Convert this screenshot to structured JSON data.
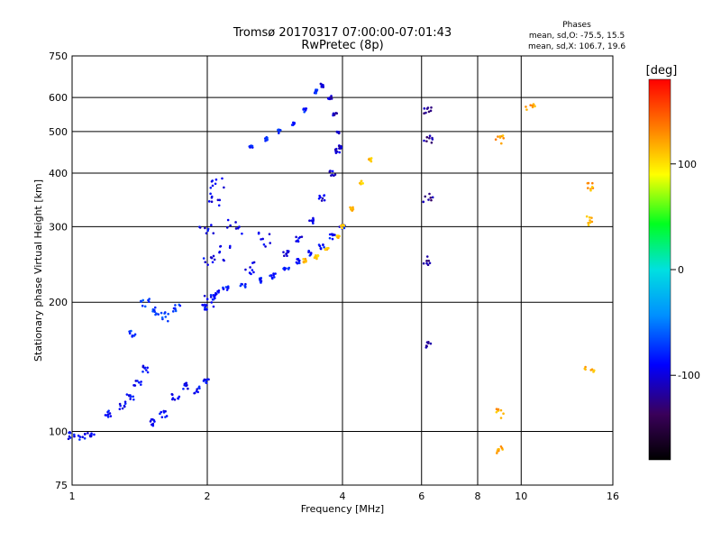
{
  "title_line1": "Tromsø 20170317 07:00:00-07:01:43",
  "title_line2": "RwPretec (8p)",
  "stats": {
    "heading": "Phases",
    "line1": "mean, sd,O: -75.5, 15.5",
    "line2": "mean, sd,X: 106.7, 19.6"
  },
  "colorbar": {
    "label": "[deg]",
    "min": -180,
    "max": 180,
    "ticks": [
      100,
      0,
      -100
    ],
    "tick_labels": [
      "100",
      "0",
      "-100"
    ]
  },
  "chart_data": {
    "type": "scatter",
    "xlabel": "Frequency [MHz]",
    "ylabel": "Stationary phase Virtual Height [km]",
    "xscale": "log",
    "yscale": "log",
    "xlim": [
      1,
      16
    ],
    "ylim": [
      75,
      750
    ],
    "grid": true,
    "x_ticks": [
      1,
      2,
      4,
      6,
      8,
      10,
      16
    ],
    "x_tick_labels": [
      "1",
      "2",
      "4",
      "6",
      "8",
      "10",
      "16"
    ],
    "y_ticks": [
      75,
      100,
      200,
      300,
      400,
      500,
      600,
      750
    ],
    "y_tick_labels": [
      "75",
      "100",
      "200",
      "300",
      "400",
      "500",
      "600",
      "750"
    ],
    "traces": [
      {
        "f": [
          1.0,
          1.05,
          1.1,
          1.2,
          1.3,
          1.35,
          1.4,
          1.45,
          1.5,
          1.6,
          1.7,
          1.8,
          1.9,
          2.0
        ],
        "h": [
          98,
          97,
          99,
          110,
          115,
          120,
          130,
          140,
          105,
          110,
          120,
          128,
          125,
          130
        ],
        "phase": -90,
        "spread": 0.04
      },
      {
        "f": [
          1.35,
          1.45,
          1.55,
          1.6,
          1.7
        ],
        "h": [
          170,
          200,
          190,
          185,
          195
        ],
        "phase": -70,
        "spread": 0.05
      },
      {
        "f": [
          2.0,
          2.05,
          2.1,
          2.2,
          2.4,
          2.6,
          2.8,
          3.0,
          3.2,
          3.4,
          3.6,
          3.8,
          4.0
        ],
        "h": [
          195,
          205,
          210,
          215,
          220,
          225,
          230,
          240,
          250,
          260,
          270,
          285,
          300
        ],
        "phase": -85,
        "spread": 0.03
      },
      {
        "f": [
          2.0,
          2.0,
          2.0,
          2.05,
          2.1,
          2.2,
          2.3,
          2.5,
          2.7
        ],
        "h": [
          200,
          250,
          300,
          350,
          380,
          260,
          300,
          240,
          280
        ],
        "phase": -95,
        "spread": 0.08
      },
      {
        "f": [
          3.0,
          3.2,
          3.4,
          3.6,
          3.8,
          3.9
        ],
        "h": [
          260,
          280,
          310,
          350,
          400,
          450
        ],
        "phase": -100,
        "spread": 0.03
      },
      {
        "f": [
          2.5,
          2.7,
          2.9,
          3.1,
          3.3,
          3.5
        ],
        "h": [
          460,
          480,
          500,
          520,
          560,
          620
        ],
        "phase": -80,
        "spread": 0.02
      },
      {
        "f": [
          3.6,
          3.75,
          3.85,
          3.9,
          3.95
        ],
        "h": [
          640,
          600,
          550,
          500,
          460
        ],
        "phase": -105,
        "spread": 0.02
      },
      {
        "f": [
          3.3,
          3.5,
          3.7,
          3.9,
          4.0,
          4.2,
          4.4,
          4.6
        ],
        "h": [
          250,
          255,
          265,
          285,
          300,
          330,
          380,
          430
        ],
        "phase": 110,
        "spread": 0.02
      },
      {
        "f": [
          6.2,
          6.2,
          6.2,
          6.2,
          6.2
        ],
        "h": [
          560,
          480,
          350,
          250,
          160
        ],
        "phase": -120,
        "spread": 0.05
      },
      {
        "f": [
          9.0,
          9.0,
          9.0,
          10.5,
          14.2,
          14.2,
          14.2
        ],
        "h": [
          480,
          110,
          90,
          570,
          370,
          310,
          140
        ],
        "phase": 120,
        "spread": 0.05
      }
    ]
  }
}
